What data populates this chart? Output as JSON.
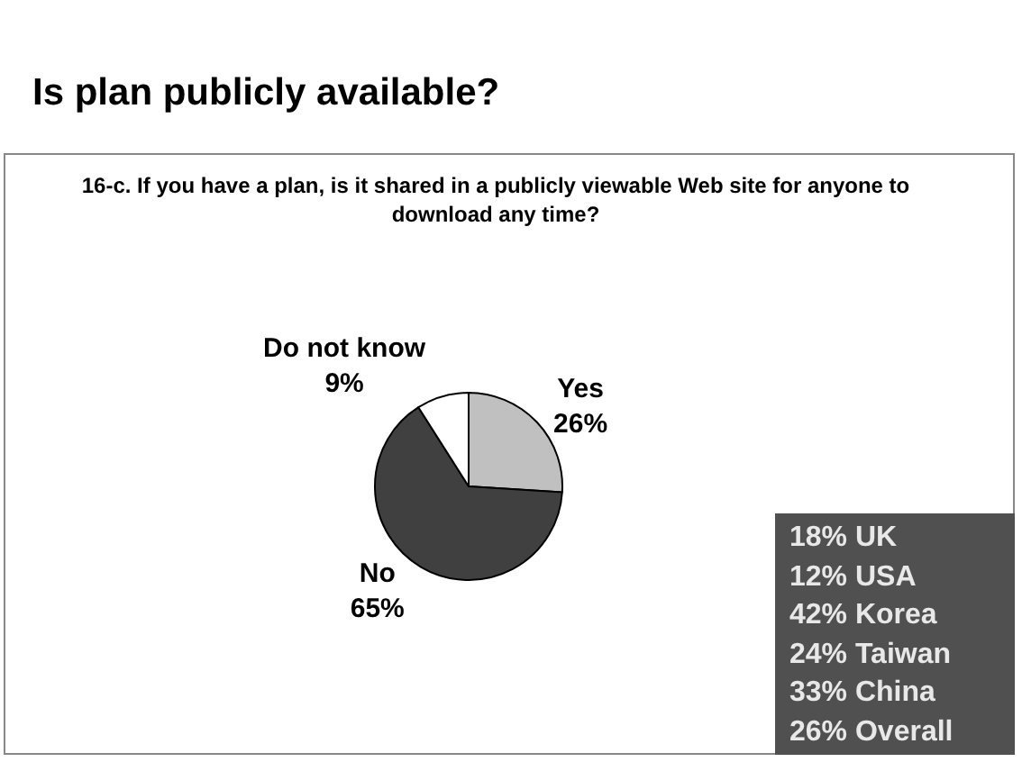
{
  "chart_data": {
    "type": "pie",
    "title": "Is plan publicly available?",
    "subtitle": "16-c. If you have a plan, is it shared in a publicly viewable Web site for anyone to download any time?",
    "categories": [
      "Yes",
      "No",
      "Do not know"
    ],
    "values": [
      26,
      65,
      9
    ],
    "value_labels": [
      "26%",
      "65%",
      "9%"
    ],
    "colors": [
      "#c0c0c0",
      "#404040",
      "#ffffff"
    ],
    "legend": false,
    "annotations": [
      "18% UK",
      "12% USA",
      "42% Korea",
      "24% Taiwan",
      "33% China",
      "26% Overall"
    ]
  }
}
